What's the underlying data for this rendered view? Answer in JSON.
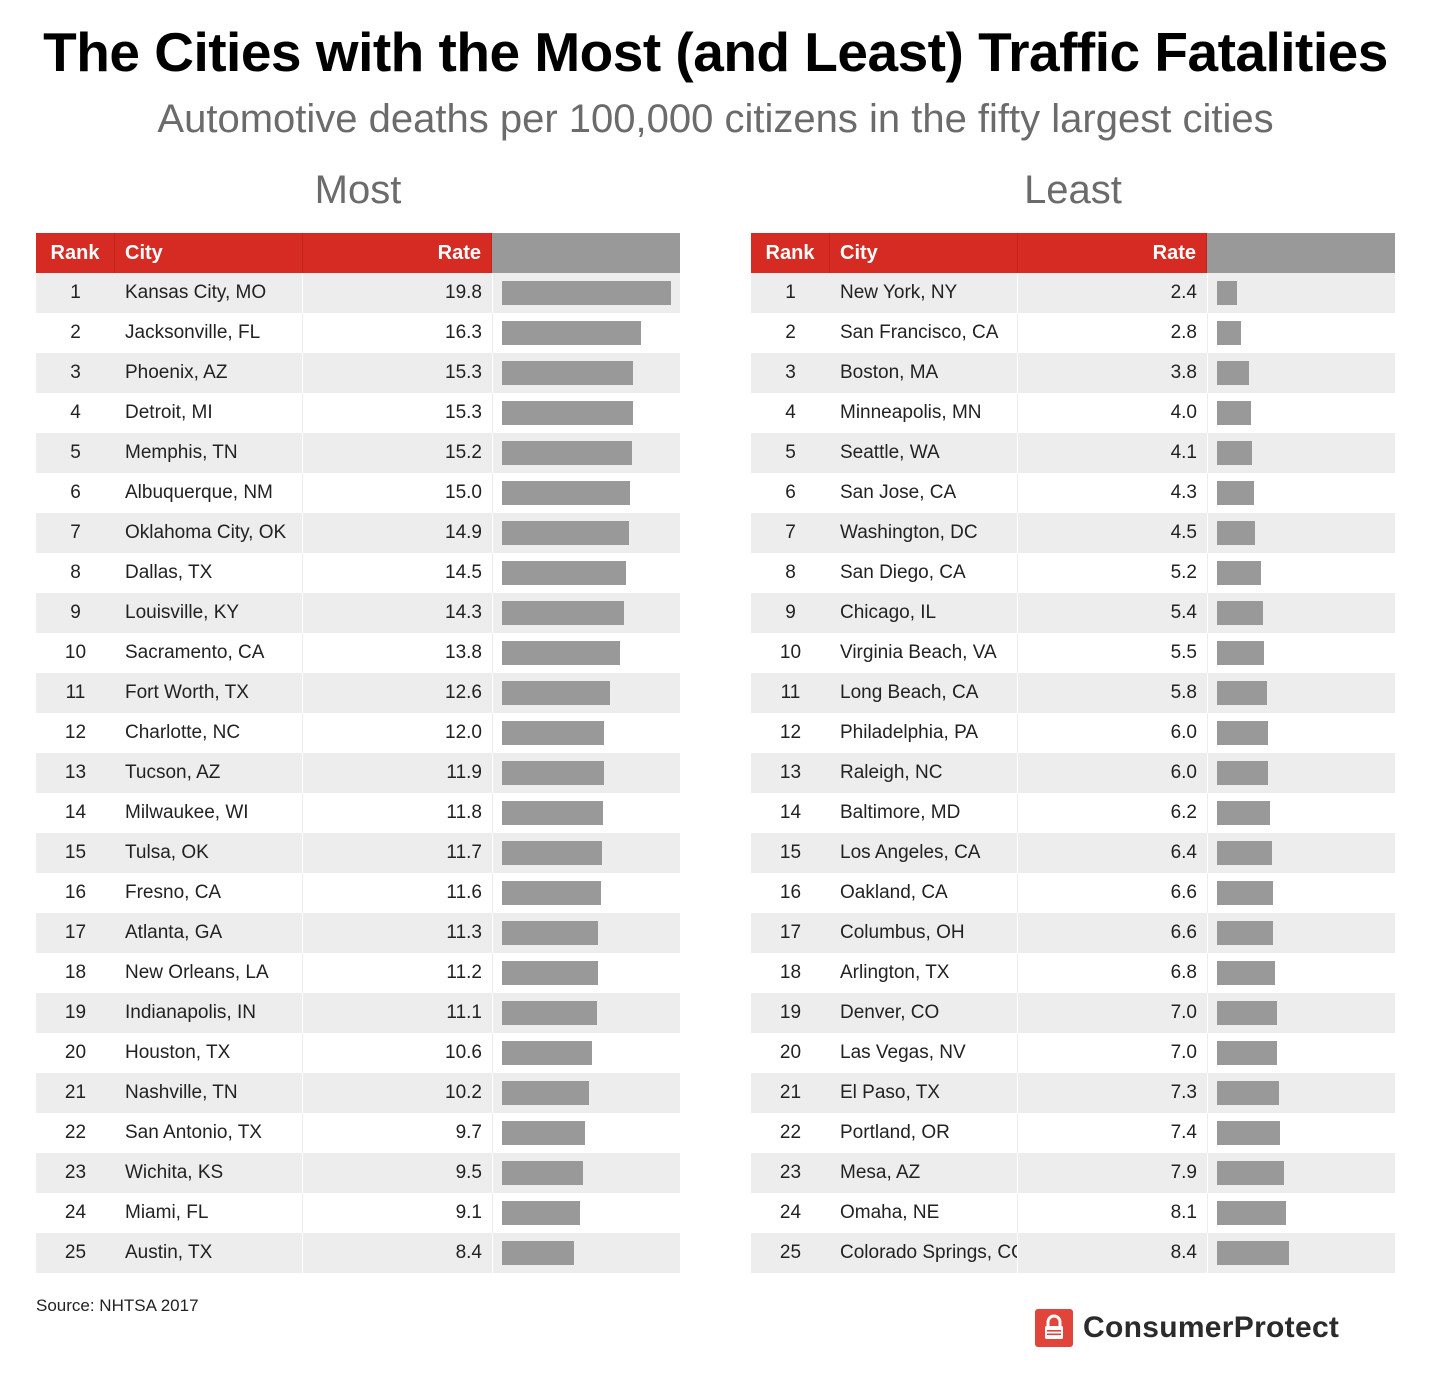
{
  "title": "The Cities with the Most (and Least) Traffic Fatalities",
  "subtitle": "Automotive deaths per 100,000 citizens in the fifty largest cities",
  "headers": {
    "rank": "Rank",
    "city": "City",
    "rate": "Rate"
  },
  "source": "Source: NHTSA 2017",
  "logo": {
    "text": "ConsumerProtect",
    "icon": "lock-icon"
  },
  "colors": {
    "header": "#d62b22",
    "bar": "#999999",
    "stripe": "#ededed",
    "logo": "#e0443a"
  },
  "chart_data": [
    {
      "type": "table",
      "title": "Most",
      "columns": [
        "Rank",
        "City",
        "Rate"
      ],
      "max_scale": 19.8,
      "rows": [
        {
          "rank": "1",
          "city": "Kansas City, MO",
          "rate": "19.8",
          "value": 19.8
        },
        {
          "rank": "2",
          "city": "Jacksonville, FL",
          "rate": "16.3",
          "value": 16.3
        },
        {
          "rank": "3",
          "city": "Phoenix, AZ",
          "rate": "15.3",
          "value": 15.3
        },
        {
          "rank": "4",
          "city": "Detroit, MI",
          "rate": "15.3",
          "value": 15.3
        },
        {
          "rank": "5",
          "city": "Memphis, TN",
          "rate": "15.2",
          "value": 15.2
        },
        {
          "rank": "6",
          "city": "Albuquerque, NM",
          "rate": "15.0",
          "value": 15.0
        },
        {
          "rank": "7",
          "city": "Oklahoma City, OK",
          "rate": "14.9",
          "value": 14.9
        },
        {
          "rank": "8",
          "city": "Dallas, TX",
          "rate": "14.5",
          "value": 14.5
        },
        {
          "rank": "9",
          "city": "Louisville, KY",
          "rate": "14.3",
          "value": 14.3
        },
        {
          "rank": "10",
          "city": "Sacramento, CA",
          "rate": "13.8",
          "value": 13.8
        },
        {
          "rank": "11",
          "city": "Fort Worth, TX",
          "rate": "12.6",
          "value": 12.6
        },
        {
          "rank": "12",
          "city": "Charlotte, NC",
          "rate": "12.0",
          "value": 12.0
        },
        {
          "rank": "13",
          "city": "Tucson, AZ",
          "rate": "11.9",
          "value": 11.9
        },
        {
          "rank": "14",
          "city": "Milwaukee, WI",
          "rate": "11.8",
          "value": 11.8
        },
        {
          "rank": "15",
          "city": "Tulsa, OK",
          "rate": "11.7",
          "value": 11.7
        },
        {
          "rank": "16",
          "city": "Fresno, CA",
          "rate": "11.6",
          "value": 11.6
        },
        {
          "rank": "17",
          "city": "Atlanta, GA",
          "rate": "11.3",
          "value": 11.3
        },
        {
          "rank": "18",
          "city": "New Orleans, LA",
          "rate": "11.2",
          "value": 11.2
        },
        {
          "rank": "19",
          "city": "Indianapolis, IN",
          "rate": "11.1",
          "value": 11.1
        },
        {
          "rank": "20",
          "city": "Houston, TX",
          "rate": "10.6",
          "value": 10.6
        },
        {
          "rank": "21",
          "city": "Nashville, TN",
          "rate": "10.2",
          "value": 10.2
        },
        {
          "rank": "22",
          "city": "San Antonio, TX",
          "rate": "9.7",
          "value": 9.7
        },
        {
          "rank": "23",
          "city": "Wichita, KS",
          "rate": "9.5",
          "value": 9.5
        },
        {
          "rank": "24",
          "city": "Miami, FL",
          "rate": "9.1",
          "value": 9.1
        },
        {
          "rank": "25",
          "city": "Austin, TX",
          "rate": "8.4",
          "value": 8.4
        }
      ]
    },
    {
      "type": "table",
      "title": "Least",
      "columns": [
        "Rank",
        "City",
        "Rate"
      ],
      "max_scale": 19.8,
      "rows": [
        {
          "rank": "1",
          "city": "New York, NY",
          "rate": "2.4",
          "value": 2.4
        },
        {
          "rank": "2",
          "city": "San Francisco, CA",
          "rate": "2.8",
          "value": 2.8
        },
        {
          "rank": "3",
          "city": "Boston, MA",
          "rate": "3.8",
          "value": 3.8
        },
        {
          "rank": "4",
          "city": "Minneapolis, MN",
          "rate": "4.0",
          "value": 4.0
        },
        {
          "rank": "5",
          "city": "Seattle, WA",
          "rate": "4.1",
          "value": 4.1
        },
        {
          "rank": "6",
          "city": "San Jose, CA",
          "rate": "4.3",
          "value": 4.3
        },
        {
          "rank": "7",
          "city": "Washington, DC",
          "rate": "4.5",
          "value": 4.5
        },
        {
          "rank": "8",
          "city": "San Diego, CA",
          "rate": "5.2",
          "value": 5.2
        },
        {
          "rank": "9",
          "city": "Chicago, IL",
          "rate": "5.4",
          "value": 5.4
        },
        {
          "rank": "10",
          "city": "Virginia Beach, VA",
          "rate": "5.5",
          "value": 5.5
        },
        {
          "rank": "11",
          "city": "Long Beach, CA",
          "rate": "5.8",
          "value": 5.8
        },
        {
          "rank": "12",
          "city": "Philadelphia, PA",
          "rate": "6.0",
          "value": 6.0
        },
        {
          "rank": "13",
          "city": "Raleigh, NC",
          "rate": "6.0",
          "value": 6.0
        },
        {
          "rank": "14",
          "city": "Baltimore, MD",
          "rate": "6.2",
          "value": 6.2
        },
        {
          "rank": "15",
          "city": "Los Angeles, CA",
          "rate": "6.4",
          "value": 6.4
        },
        {
          "rank": "16",
          "city": "Oakland, CA",
          "rate": "6.6",
          "value": 6.6
        },
        {
          "rank": "17",
          "city": "Columbus, OH",
          "rate": "6.6",
          "value": 6.6
        },
        {
          "rank": "18",
          "city": "Arlington, TX",
          "rate": "6.8",
          "value": 6.8
        },
        {
          "rank": "19",
          "city": "Denver, CO",
          "rate": "7.0",
          "value": 7.0
        },
        {
          "rank": "20",
          "city": "Las Vegas, NV",
          "rate": "7.0",
          "value": 7.0
        },
        {
          "rank": "21",
          "city": "El Paso, TX",
          "rate": "7.3",
          "value": 7.3
        },
        {
          "rank": "22",
          "city": "Portland, OR",
          "rate": "7.4",
          "value": 7.4
        },
        {
          "rank": "23",
          "city": "Mesa, AZ",
          "rate": "7.9",
          "value": 7.9
        },
        {
          "rank": "24",
          "city": "Omaha, NE",
          "rate": "8.1",
          "value": 8.1
        },
        {
          "rank": "25",
          "city": "Colorado Springs, CO",
          "rate": "8.4",
          "value": 8.4
        }
      ]
    }
  ]
}
